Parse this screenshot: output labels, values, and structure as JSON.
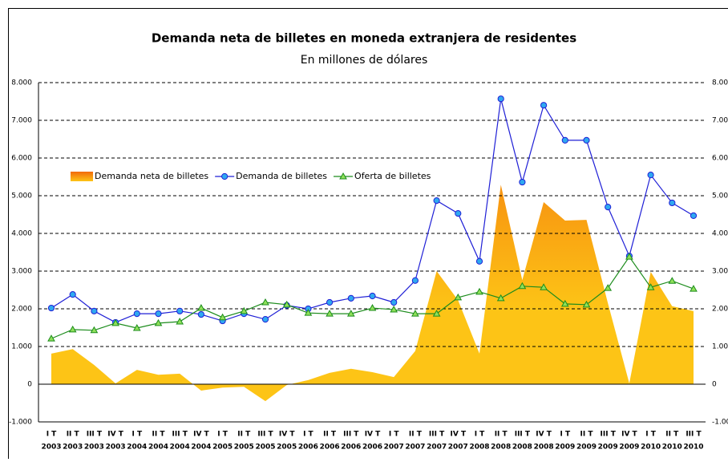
{
  "chart_data": {
    "type": "line-area",
    "title": "Demanda neta de billetes en moneda extranjera de residentes",
    "subtitle": "En millones de dólares",
    "categories": [
      [
        "I T",
        "2003"
      ],
      [
        "II T",
        "2003"
      ],
      [
        "III T",
        "2003"
      ],
      [
        "IV T",
        "2003"
      ],
      [
        "I T",
        "2004"
      ],
      [
        "II T",
        "2004"
      ],
      [
        "III T",
        "2004"
      ],
      [
        "IV T",
        "2004"
      ],
      [
        "I T",
        "2005"
      ],
      [
        "II T",
        "2005"
      ],
      [
        "III T",
        "2005"
      ],
      [
        "IV T",
        "2005"
      ],
      [
        "I T",
        "2006"
      ],
      [
        "II T",
        "2006"
      ],
      [
        "III T",
        "2006"
      ],
      [
        "IV T",
        "2006"
      ],
      [
        "I T",
        "2007"
      ],
      [
        "II T",
        "2007"
      ],
      [
        "III T",
        "2007"
      ],
      [
        "IV T",
        "2007"
      ],
      [
        "I T",
        "2008"
      ],
      [
        "II T",
        "2008"
      ],
      [
        "III T",
        "2008"
      ],
      [
        "IV T",
        "2008"
      ],
      [
        "I T",
        "2009"
      ],
      [
        "II T",
        "2009"
      ],
      [
        "III T",
        "2009"
      ],
      [
        "IV T",
        "2009"
      ],
      [
        "I T",
        "2010"
      ],
      [
        "II T",
        "2010"
      ],
      [
        "III T",
        "2010"
      ]
    ],
    "series": [
      {
        "name": "Demanda neta de billetes",
        "kind": "area",
        "colors": [
          "#f26a0c",
          "#fdc416"
        ],
        "values": [
          810,
          930,
          510,
          20,
          380,
          250,
          280,
          -170,
          -90,
          -70,
          -450,
          -20,
          110,
          300,
          410,
          320,
          190,
          880,
          3000,
          2230,
          810,
          5290,
          2760,
          4830,
          4340,
          4360,
          2150,
          20,
          2980,
          2070,
          1940
        ]
      },
      {
        "name": "Demanda de billetes",
        "kind": "line",
        "marker": "circle",
        "color": "#1f1fd6",
        "marker_fill": "#2fa8f0",
        "values": [
          2020,
          2380,
          1940,
          1640,
          1870,
          1870,
          1940,
          1850,
          1680,
          1870,
          1720,
          2090,
          2000,
          2170,
          2280,
          2340,
          2170,
          2750,
          4870,
          4530,
          3260,
          7570,
          5360,
          7400,
          6470,
          6470,
          4700,
          3400,
          5550,
          4810,
          4470
        ]
      },
      {
        "name": "Oferta de billetes",
        "kind": "line",
        "marker": "triangle",
        "color": "#1c8c1c",
        "marker_fill": "#8fe05a",
        "values": [
          1210,
          1450,
          1430,
          1620,
          1490,
          1620,
          1660,
          2020,
          1770,
          1940,
          2170,
          2110,
          1890,
          1870,
          1870,
          2020,
          1980,
          1870,
          1870,
          2300,
          2450,
          2280,
          2600,
          2570,
          2130,
          2110,
          2550,
          3380,
          2570,
          2740,
          2530
        ]
      }
    ],
    "ylim": [
      -1000,
      8000
    ],
    "yticks": [
      {
        "value": -1000,
        "label": "-1.000"
      },
      0,
      {
        "value": 1000,
        "label": "1.000"
      },
      {
        "value": 2000,
        "label": "2.000"
      },
      {
        "value": 3000,
        "label": "3.000"
      },
      {
        "value": 4000,
        "label": "4.000"
      },
      {
        "value": 5000,
        "label": "5.000"
      },
      {
        "value": 6000,
        "label": "6.000"
      },
      {
        "value": 7000,
        "label": "7.000"
      },
      {
        "value": 8000,
        "label": "8.000"
      }
    ],
    "grid": true,
    "legend": "upper left"
  }
}
